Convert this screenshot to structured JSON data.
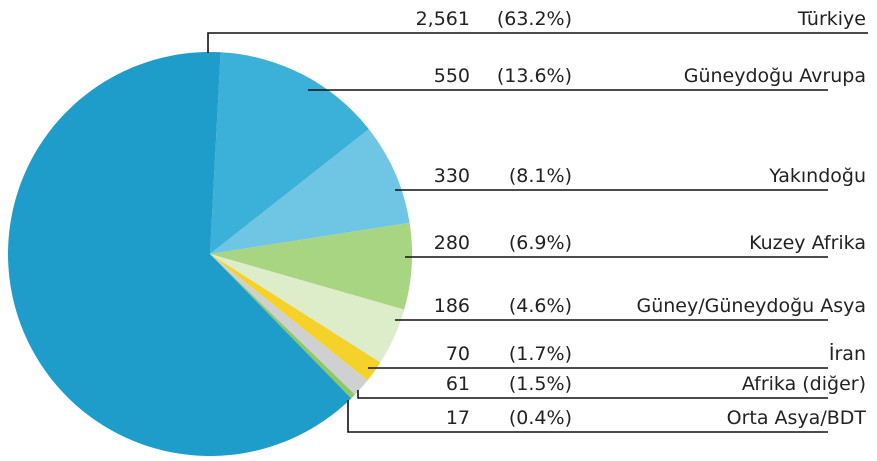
{
  "chart_data": {
    "type": "pie",
    "categories": [
      "Türkiye",
      "Güneydoğu Avrupa",
      "Yakındoğu",
      "Kuzey Afrika",
      "Güney/Güneydoğu Asya",
      "İran",
      "Afrika (diğer)",
      "Orta Asya/BDT"
    ],
    "values": [
      2561,
      550,
      330,
      280,
      186,
      70,
      61,
      17
    ],
    "value_labels": [
      "2,561",
      "550",
      "330",
      "280",
      "186",
      "70",
      "61",
      "17"
    ],
    "percents": [
      63.2,
      13.6,
      8.1,
      6.9,
      4.6,
      1.7,
      1.5,
      0.4
    ],
    "percent_labels": [
      "(63.2%)",
      "(13.6%)",
      "(8.1%)",
      "(6.9%)",
      "(4.6%)",
      "(1.7%)",
      "(1.5%)",
      "(0.4%)"
    ],
    "colors": [
      "#1e9dcb",
      "#3bb0d8",
      "#6ec5e4",
      "#a8d582",
      "#ddedca",
      "#f5d22a",
      "#cfd0d2",
      "#8cc866"
    ]
  }
}
